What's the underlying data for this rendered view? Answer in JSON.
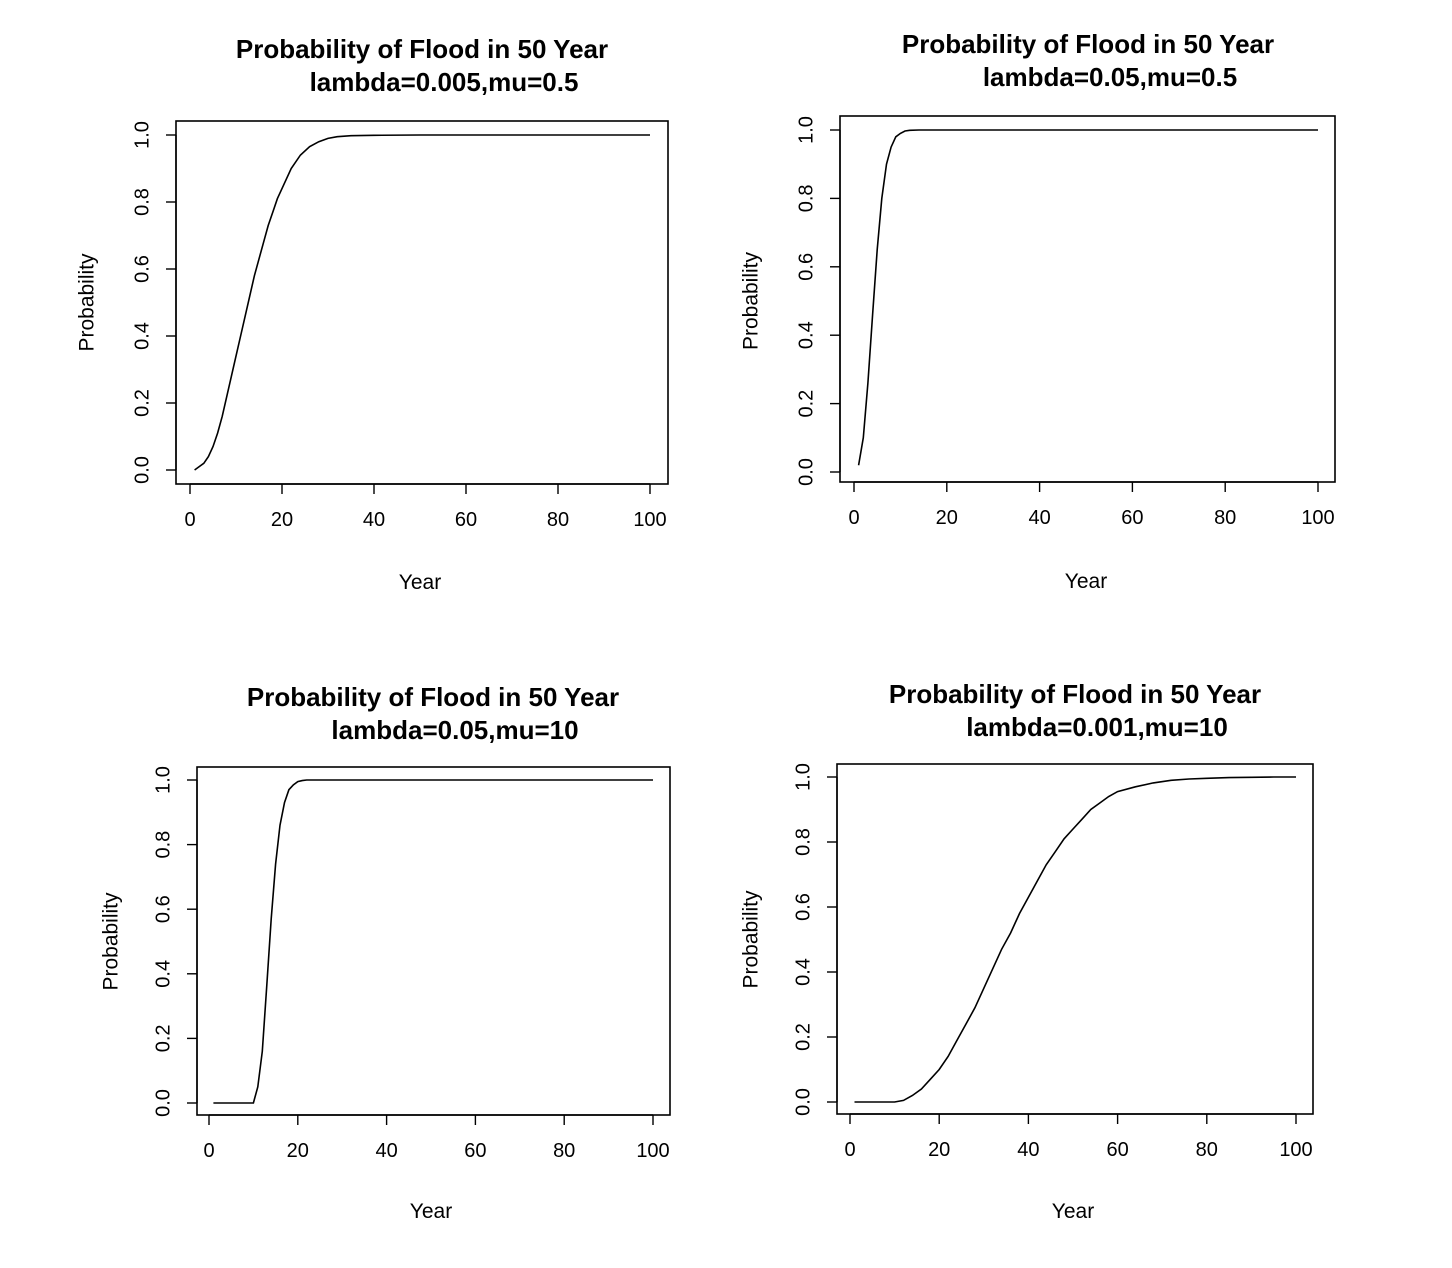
{
  "chart_data": [
    {
      "type": "line",
      "title": "Probability of Flood in 50 Year",
      "subtitle": "lambda=0.005,mu=0.5",
      "xlabel": "Year",
      "ylabel": "Probability",
      "xlim": [
        1,
        100
      ],
      "ylim": [
        0,
        1
      ],
      "x_ticks": [
        0,
        20,
        40,
        60,
        80,
        100
      ],
      "y_ticks": [
        0.0,
        0.2,
        0.4,
        0.6,
        0.8,
        1.0
      ],
      "x_tick_labels": [
        "0",
        "20",
        "40",
        "60",
        "80",
        "100"
      ],
      "y_tick_labels": [
        "0.0",
        "0.2",
        "0.4",
        "0.6",
        "0.8",
        "1.0"
      ],
      "grid": false,
      "series": [
        {
          "x": [
            1,
            2,
            3,
            4,
            5,
            6,
            7,
            8,
            9,
            10,
            11,
            12,
            13,
            14,
            15,
            16,
            17,
            18,
            19,
            20,
            22,
            24,
            26,
            28,
            30,
            32,
            35,
            40,
            50,
            60,
            70,
            80,
            90,
            100
          ],
          "y": [
            0.0,
            0.01,
            0.02,
            0.04,
            0.07,
            0.11,
            0.16,
            0.22,
            0.28,
            0.34,
            0.4,
            0.46,
            0.52,
            0.58,
            0.63,
            0.68,
            0.73,
            0.77,
            0.81,
            0.84,
            0.9,
            0.94,
            0.965,
            0.98,
            0.99,
            0.995,
            0.998,
            0.999,
            1.0,
            1.0,
            1.0,
            1.0,
            1.0,
            1.0
          ]
        }
      ]
    },
    {
      "type": "line",
      "title": "Probability of Flood in 50 Year",
      "subtitle": "lambda=0.05,mu=0.5",
      "xlabel": "Year",
      "ylabel": "Probability",
      "xlim": [
        1,
        100
      ],
      "ylim": [
        0,
        1
      ],
      "x_ticks": [
        0,
        20,
        40,
        60,
        80,
        100
      ],
      "y_ticks": [
        0.0,
        0.2,
        0.4,
        0.6,
        0.8,
        1.0
      ],
      "x_tick_labels": [
        "0",
        "20",
        "40",
        "60",
        "80",
        "100"
      ],
      "y_tick_labels": [
        "0.0",
        "0.2",
        "0.4",
        "0.6",
        "0.8",
        "1.0"
      ],
      "grid": false,
      "series": [
        {
          "x": [
            1,
            2,
            3,
            4,
            5,
            6,
            7,
            8,
            9,
            10,
            11,
            12,
            14,
            16,
            20,
            30,
            50,
            75,
            100
          ],
          "y": [
            0.02,
            0.1,
            0.26,
            0.46,
            0.65,
            0.8,
            0.9,
            0.95,
            0.98,
            0.99,
            0.997,
            0.999,
            1.0,
            1.0,
            1.0,
            1.0,
            1.0,
            1.0,
            1.0
          ]
        }
      ]
    },
    {
      "type": "line",
      "title": "Probability of Flood in 50 Year",
      "subtitle": "lambda=0.05,mu=10",
      "xlabel": "Year",
      "ylabel": "Probability",
      "xlim": [
        1,
        100
      ],
      "ylim": [
        0,
        1
      ],
      "x_ticks": [
        0,
        20,
        40,
        60,
        80,
        100
      ],
      "y_ticks": [
        0.0,
        0.2,
        0.4,
        0.6,
        0.8,
        1.0
      ],
      "x_tick_labels": [
        "0",
        "20",
        "40",
        "60",
        "80",
        "100"
      ],
      "y_tick_labels": [
        "0.0",
        "0.2",
        "0.4",
        "0.6",
        "0.8",
        "1.0"
      ],
      "grid": false,
      "series": [
        {
          "x": [
            1,
            5,
            9,
            10,
            11,
            12,
            13,
            14,
            15,
            16,
            17,
            18,
            19,
            20,
            21,
            22,
            24,
            30,
            50,
            75,
            100
          ],
          "y": [
            0.0,
            0.0,
            0.0,
            0.0,
            0.05,
            0.16,
            0.36,
            0.57,
            0.74,
            0.86,
            0.93,
            0.97,
            0.985,
            0.995,
            0.998,
            1.0,
            1.0,
            1.0,
            1.0,
            1.0,
            1.0
          ]
        }
      ]
    },
    {
      "type": "line",
      "title": "Probability of Flood in 50 Year",
      "subtitle": "lambda=0.001,mu=10",
      "xlabel": "Year",
      "ylabel": "Probability",
      "xlim": [
        1,
        100
      ],
      "ylim": [
        0,
        1
      ],
      "x_ticks": [
        0,
        20,
        40,
        60,
        80,
        100
      ],
      "y_ticks": [
        0.0,
        0.2,
        0.4,
        0.6,
        0.8,
        1.0
      ],
      "x_tick_labels": [
        "0",
        "20",
        "40",
        "60",
        "80",
        "100"
      ],
      "y_tick_labels": [
        "0.0",
        "0.2",
        "0.4",
        "0.6",
        "0.8",
        "1.0"
      ],
      "grid": false,
      "series": [
        {
          "x": [
            1,
            5,
            10,
            12,
            14,
            16,
            18,
            20,
            22,
            24,
            26,
            28,
            30,
            32,
            34,
            36,
            38,
            40,
            42,
            44,
            46,
            48,
            50,
            52,
            54,
            56,
            58,
            60,
            64,
            68,
            72,
            76,
            80,
            85,
            90,
            95,
            100
          ],
          "y": [
            0.0,
            0.0,
            0.0,
            0.005,
            0.02,
            0.04,
            0.07,
            0.1,
            0.14,
            0.19,
            0.24,
            0.29,
            0.35,
            0.41,
            0.47,
            0.52,
            0.58,
            0.63,
            0.68,
            0.73,
            0.77,
            0.81,
            0.84,
            0.87,
            0.9,
            0.92,
            0.94,
            0.955,
            0.97,
            0.982,
            0.99,
            0.994,
            0.996,
            0.998,
            0.999,
            1.0,
            1.0
          ]
        }
      ]
    }
  ]
}
